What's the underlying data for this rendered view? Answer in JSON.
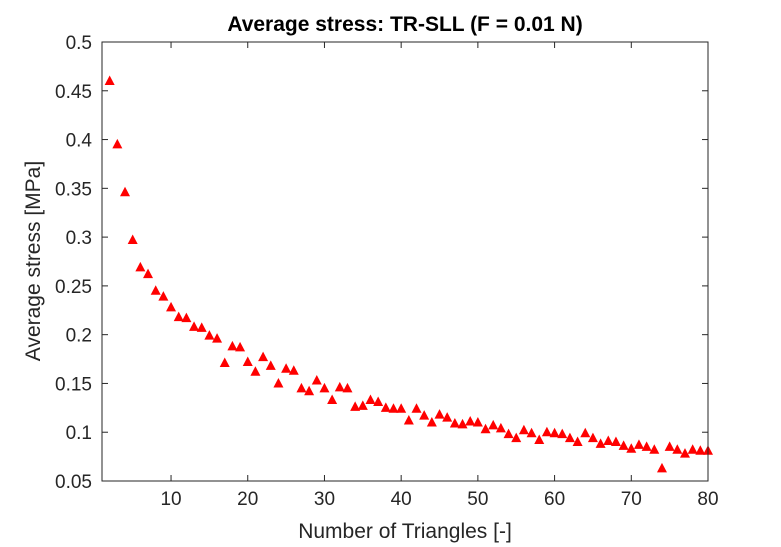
{
  "chart_data": {
    "type": "scatter",
    "title": "Average stress: TR-SLL (F = 0.01 N)",
    "xlabel": "Number of Triangles [-]",
    "ylabel": "Average stress [MPa]",
    "xlim": [
      1,
      80
    ],
    "ylim": [
      0.05,
      0.5
    ],
    "xticks": [
      10,
      20,
      30,
      40,
      50,
      60,
      70,
      80
    ],
    "xtick_labels": [
      "10",
      "20",
      "30",
      "40",
      "50",
      "60",
      "70",
      "80"
    ],
    "yticks": [
      0.05,
      0.1,
      0.15,
      0.2,
      0.25,
      0.3,
      0.35,
      0.4,
      0.45,
      0.5
    ],
    "ytick_labels": [
      "0.05",
      "0.1",
      "0.15",
      "0.2",
      "0.25",
      "0.3",
      "0.35",
      "0.4",
      "0.45",
      "0.5"
    ],
    "grid": false,
    "marker": "triangle-up",
    "marker_color": "#ff0000",
    "axis_color": "#262626",
    "series": [
      {
        "x": [
          2,
          3,
          4,
          5,
          6,
          7,
          8,
          9,
          10,
          11,
          12,
          13,
          14,
          15,
          16,
          17,
          18,
          19,
          20,
          21,
          22,
          23,
          24,
          25,
          26,
          27,
          28,
          29,
          30,
          31,
          32,
          33,
          34,
          35,
          36,
          37,
          38,
          39,
          40,
          41,
          42,
          43,
          44,
          45,
          46,
          47,
          48,
          49,
          50,
          51,
          52,
          53,
          54,
          55,
          56,
          57,
          58,
          59,
          60,
          61,
          62,
          63,
          64,
          65,
          66,
          67,
          68,
          69,
          70,
          71,
          72,
          73,
          74,
          75,
          76,
          77,
          78,
          79,
          80
        ],
        "y": [
          0.46,
          0.395,
          0.346,
          0.297,
          0.269,
          0.262,
          0.245,
          0.239,
          0.228,
          0.218,
          0.217,
          0.208,
          0.207,
          0.199,
          0.196,
          0.171,
          0.188,
          0.187,
          0.172,
          0.162,
          0.177,
          0.168,
          0.15,
          0.165,
          0.163,
          0.145,
          0.142,
          0.153,
          0.145,
          0.133,
          0.146,
          0.145,
          0.126,
          0.127,
          0.133,
          0.131,
          0.125,
          0.124,
          0.124,
          0.112,
          0.124,
          0.117,
          0.11,
          0.118,
          0.115,
          0.109,
          0.108,
          0.111,
          0.11,
          0.103,
          0.107,
          0.104,
          0.098,
          0.094,
          0.102,
          0.099,
          0.092,
          0.1,
          0.099,
          0.098,
          0.094,
          0.09,
          0.099,
          0.094,
          0.088,
          0.091,
          0.09,
          0.086,
          0.083,
          0.087,
          0.085,
          0.082,
          0.063,
          0.085,
          0.082,
          0.078,
          0.082,
          0.081,
          0.081
        ]
      }
    ]
  }
}
